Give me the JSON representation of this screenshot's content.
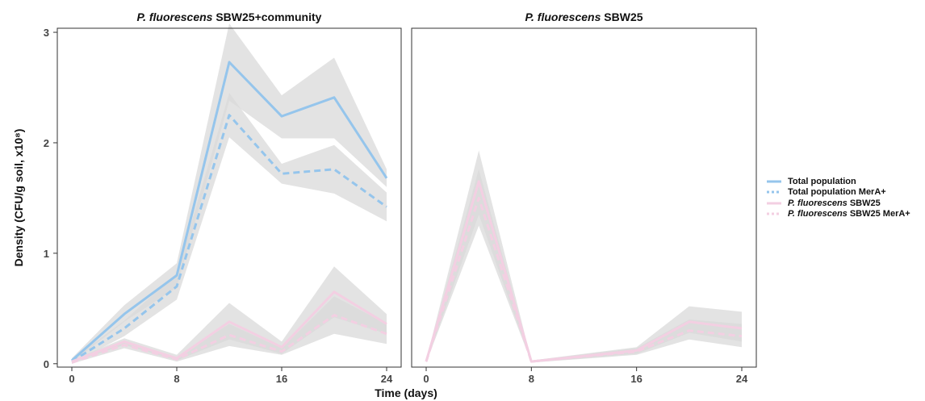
{
  "chart_data": {
    "type": "line",
    "xlabel": "Time (days)",
    "ylabel": "Density (CFU/g soil, x10⁸)",
    "xlim": [
      0,
      24
    ],
    "ylim": [
      0,
      3
    ],
    "x_ticks": [
      "0",
      "8",
      "16",
      "24"
    ],
    "y_ticks": [
      "0",
      "1",
      "2",
      "3"
    ],
    "grid": false,
    "legend_position": "right",
    "colors": {
      "total": "#95c5ec",
      "pf": "#f3cfe2",
      "band": "#d9d9d9"
    },
    "legend": [
      {
        "italic": "",
        "text": "Total population",
        "color": "#95c5ec",
        "dash": "solid"
      },
      {
        "italic": "",
        "text": "Total population MerA+",
        "color": "#95c5ec",
        "dash": "dotted"
      },
      {
        "italic": "P. fluorescens",
        "text": " SBW25",
        "color": "#f3cfe2",
        "dash": "solid"
      },
      {
        "italic": "P. fluorescens",
        "text": " SBW25 MerA+",
        "color": "#f3cfe2",
        "dash": "dotted"
      }
    ],
    "panels": [
      {
        "title_italic": "P. fluorescens",
        "title_rest": " SBW25+community",
        "x": [
          0,
          4,
          8,
          12,
          16,
          20,
          24
        ],
        "series": [
          {
            "name": "Total population",
            "color": "#95c5ec",
            "dash": "solid",
            "values": [
              0.03,
              0.45,
              0.8,
              2.73,
              2.24,
              2.41,
              1.68
            ],
            "lower": [
              0.01,
              0.38,
              0.69,
              2.38,
              2.04,
              2.04,
              1.6
            ],
            "upper": [
              0.05,
              0.53,
              0.91,
              3.08,
              2.43,
              2.77,
              1.76
            ]
          },
          {
            "name": "Total population MerA+",
            "color": "#95c5ec",
            "dash": "dashed",
            "values": [
              0.02,
              0.32,
              0.7,
              2.25,
              1.72,
              1.76,
              1.42
            ],
            "lower": [
              0.0,
              0.25,
              0.58,
              2.05,
              1.63,
              1.54,
              1.29
            ],
            "upper": [
              0.04,
              0.39,
              0.82,
              2.45,
              1.81,
              1.98,
              1.55
            ]
          },
          {
            "name": "P. fluorescens SBW25",
            "color": "#f3cfe2",
            "dash": "solid",
            "values": [
              0.02,
              0.2,
              0.05,
              0.38,
              0.15,
              0.65,
              0.36
            ],
            "lower": [
              0.01,
              0.17,
              0.03,
              0.22,
              0.09,
              0.42,
              0.27
            ],
            "upper": [
              0.03,
              0.23,
              0.08,
              0.55,
              0.2,
              0.88,
              0.45
            ]
          },
          {
            "name": "P. fluorescens SBW25 MerA+",
            "color": "#f3cfe2",
            "dash": "dashed",
            "values": [
              0.01,
              0.17,
              0.04,
              0.26,
              0.11,
              0.44,
              0.27
            ],
            "lower": [
              0.0,
              0.14,
              0.02,
              0.16,
              0.08,
              0.27,
              0.18
            ],
            "upper": [
              0.02,
              0.2,
              0.06,
              0.36,
              0.14,
              0.61,
              0.36
            ]
          }
        ]
      },
      {
        "title_italic": "P. fluorescens",
        "title_rest": " SBW25",
        "x": [
          0,
          4,
          8,
          16,
          20,
          24
        ],
        "series": [
          {
            "name": "P. fluorescens SBW25",
            "color": "#f3cfe2",
            "dash": "solid",
            "values": [
              0.02,
              1.65,
              0.02,
              0.12,
              0.38,
              0.32
            ],
            "lower": [
              0.01,
              1.35,
              0.01,
              0.09,
              0.28,
              0.2
            ],
            "upper": [
              0.03,
              1.93,
              0.03,
              0.15,
              0.52,
              0.47
            ]
          },
          {
            "name": "P. fluorescens SBW25 MerA+",
            "color": "#f3cfe2",
            "dash": "dashed",
            "values": [
              0.02,
              1.5,
              0.02,
              0.11,
              0.3,
              0.25
            ],
            "lower": [
              0.01,
              1.25,
              0.01,
              0.08,
              0.22,
              0.15
            ],
            "upper": [
              0.03,
              1.76,
              0.03,
              0.14,
              0.4,
              0.36
            ]
          }
        ]
      }
    ]
  }
}
